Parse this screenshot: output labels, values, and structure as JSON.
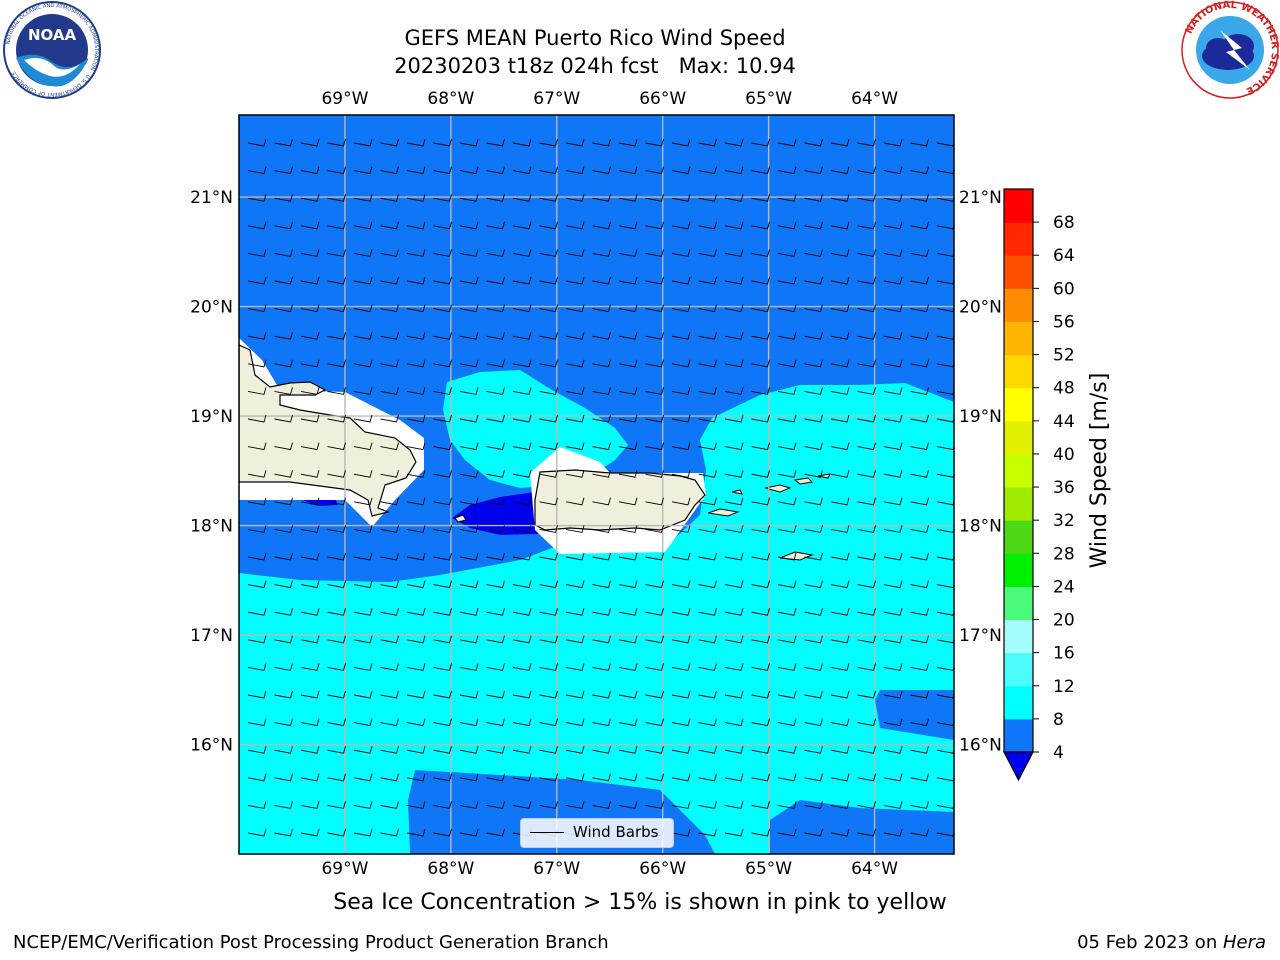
{
  "title": {
    "line1": "GEFS MEAN Puerto Rico Wind Speed",
    "line2": "20230203 t18z 024h fcst   Max: 10.94"
  },
  "map": {
    "lon_labels": [
      "69°W",
      "68°W",
      "67°W",
      "66°W",
      "65°W",
      "64°W"
    ],
    "lat_labels": [
      "21°N",
      "20°N",
      "19°N",
      "18°N",
      "17°N",
      "16°N"
    ],
    "lon_values": [
      -69,
      -68,
      -67,
      -66,
      -65,
      -64
    ],
    "lat_values": [
      21,
      20,
      19,
      18,
      17,
      16
    ],
    "extent": {
      "lon_min": -70.0,
      "lon_max": -63.25,
      "lat_min": 15.0,
      "lat_max": 21.75
    },
    "gridlines": true,
    "wind_direction": "easterly",
    "contour_fill_colors": {
      "4-8": "#0f76f8",
      "8-12": "#00ffff",
      "below-4": "#0000f0",
      "land": "#efefdc"
    },
    "legend_label": "Wind Barbs"
  },
  "colorbar": {
    "label": "Wind Speed [m/s]",
    "ticks": [
      "4",
      "8",
      "12",
      "16",
      "20",
      "24",
      "28",
      "32",
      "36",
      "40",
      "44",
      "48",
      "52",
      "56",
      "60",
      "64",
      "68"
    ],
    "colors": [
      "#0f76f8",
      "#00ffff",
      "#4cfcfc",
      "#a4fcfc",
      "#4bfa7a",
      "#00ee00",
      "#4cd814",
      "#a0ea00",
      "#c8ff00",
      "#e0f000",
      "#ffff00",
      "#ffd800",
      "#ffb400",
      "#ff8c00",
      "#ff5000",
      "#ff2800",
      "#ff0000"
    ],
    "extend_color": "#0000f0"
  },
  "note": "Sea Ice Concentration > 15% is shown in pink to yellow",
  "footer": {
    "left": "NCEP/EMC/Verification Post Processing Product Generation Branch",
    "right_date": "05 Feb 2023 on ",
    "right_machine": "Hera"
  },
  "logos": {
    "noaa_text": "NOAA",
    "noaa_ring_text": "NATIONAL OCEANIC AND ATMOSPHERIC ADMINISTRATION · U.S. DEPARTMENT OF COMMERCE",
    "nws_ring_text": "NATIONAL WEATHER SERVICE"
  }
}
